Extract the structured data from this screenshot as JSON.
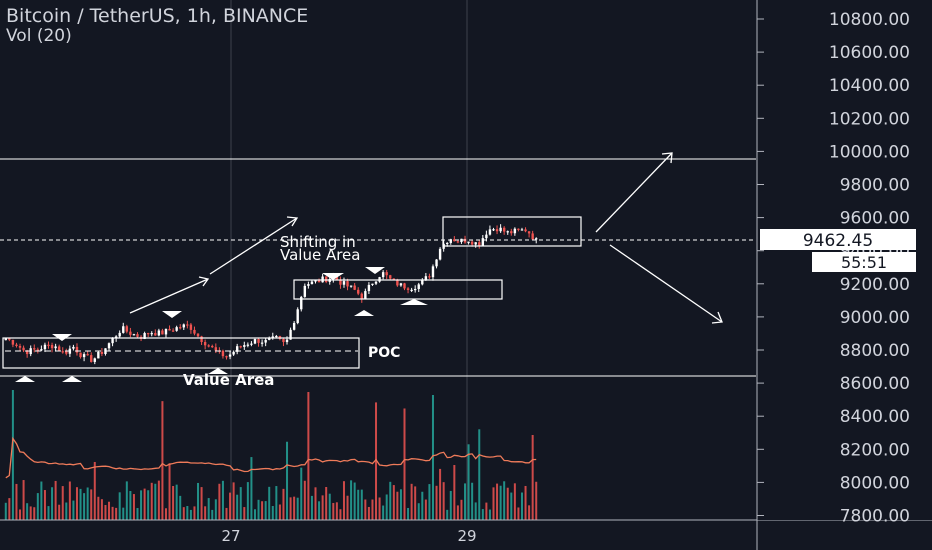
{
  "header": {
    "title": "Bitcoin / TetherUS, 1h, BINANCE",
    "indicator": "Vol (20)"
  },
  "price_axis": {
    "ticks": [
      "10800.00",
      "10600.00",
      "10400.00",
      "10200.00",
      "10000.00",
      "9800.00",
      "9600.00",
      "9400.00",
      "9200.00",
      "9000.00",
      "8800.00",
      "8600.00",
      "8400.00",
      "8200.00",
      "8000.00",
      "7800.00"
    ],
    "current_price": "9462.45",
    "countdown": "55:51"
  },
  "time_axis": {
    "ticks": [
      "27",
      "29"
    ]
  },
  "annotations": {
    "poc": "POC",
    "value_area": "Value Area",
    "shifting_line1": "Shifting in",
    "shifting_line2": "Value Area"
  },
  "colors": {
    "background": "#131722",
    "up": "#26a69a",
    "down": "#ef5350",
    "text": "#d1d4dc",
    "grid": "#363a45",
    "line": "#ffffff",
    "ma": "#ef7b5a"
  },
  "chart_data": {
    "type": "candlestick",
    "title": "Bitcoin / TetherUS, 1h, BINANCE",
    "y_range": [
      7800,
      10900
    ],
    "levels": {
      "upper_line": 9950,
      "lower_line": 8650,
      "current_price": 9462.45
    },
    "regions": [
      {
        "label": "Value Area",
        "low": 8710,
        "high": 8880,
        "poc": 8800
      },
      {
        "label": "",
        "low": 9150,
        "high": 9260
      },
      {
        "label": "Shifting in Value Area",
        "low": 9440,
        "high": 9610
      }
    ],
    "close_path": [
      8870,
      8840,
      8790,
      8800,
      8820,
      8830,
      8780,
      8820,
      8760,
      8740,
      8790,
      8860,
      8930,
      8900,
      8880,
      8910,
      8900,
      8920,
      8940,
      8950,
      8880,
      8830,
      8780,
      8760,
      8810,
      8840,
      8860,
      8850,
      8870,
      8830,
      9000,
      9200,
      9210,
      9230,
      9240,
      9200,
      9170,
      9120,
      9210,
      9270,
      9220,
      9190,
      9180,
      9200,
      9260,
      9420,
      9480,
      9460,
      9470,
      9440,
      9530,
      9540,
      9510,
      9520,
      9530,
      9462
    ]
  }
}
